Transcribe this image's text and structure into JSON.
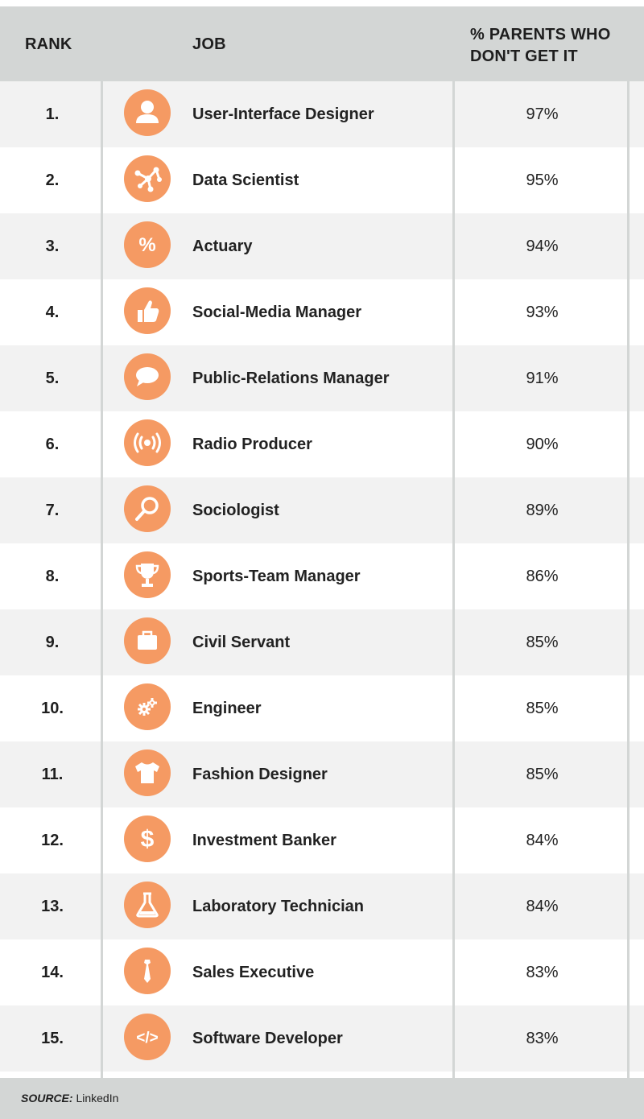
{
  "header": {
    "rank": "RANK",
    "job": "JOB",
    "pct_line1": "% PARENTS WHO",
    "pct_line2": "DON'T GET IT"
  },
  "colors": {
    "accent": "#f59a63",
    "header_bg": "#d3d6d5",
    "row_alt": "#f2f2f2"
  },
  "chart_data": {
    "type": "table",
    "columns": [
      "RANK",
      "JOB",
      "% PARENTS WHO DON'T GET IT"
    ],
    "rows": [
      {
        "rank": "1.",
        "job": "User-Interface Designer",
        "pct": "97%",
        "value": 97,
        "icon": "person-icon"
      },
      {
        "rank": "2.",
        "job": "Data Scientist",
        "pct": "95%",
        "value": 95,
        "icon": "network-icon"
      },
      {
        "rank": "3.",
        "job": "Actuary",
        "pct": "94%",
        "value": 94,
        "icon": "percent-icon"
      },
      {
        "rank": "4.",
        "job": "Social-Media Manager",
        "pct": "93%",
        "value": 93,
        "icon": "thumbs-up-icon"
      },
      {
        "rank": "5.",
        "job": "Public-Relations Manager",
        "pct": "91%",
        "value": 91,
        "icon": "speech-bubble-icon"
      },
      {
        "rank": "6.",
        "job": "Radio Producer",
        "pct": "90%",
        "value": 90,
        "icon": "broadcast-icon"
      },
      {
        "rank": "7.",
        "job": "Sociologist",
        "pct": "89%",
        "value": 89,
        "icon": "magnifier-icon"
      },
      {
        "rank": "8.",
        "job": "Sports-Team Manager",
        "pct": "86%",
        "value": 86,
        "icon": "trophy-icon"
      },
      {
        "rank": "9.",
        "job": "Civil Servant",
        "pct": "85%",
        "value": 85,
        "icon": "briefcase-icon"
      },
      {
        "rank": "10.",
        "job": "Engineer",
        "pct": "85%",
        "value": 85,
        "icon": "gears-icon"
      },
      {
        "rank": "11.",
        "job": "Fashion Designer",
        "pct": "85%",
        "value": 85,
        "icon": "tshirt-icon"
      },
      {
        "rank": "12.",
        "job": "Investment Banker",
        "pct": "84%",
        "value": 84,
        "icon": "dollar-icon"
      },
      {
        "rank": "13.",
        "job": "Laboratory Technician",
        "pct": "84%",
        "value": 84,
        "icon": "flask-icon"
      },
      {
        "rank": "14.",
        "job": "Sales Executive",
        "pct": "83%",
        "value": 83,
        "icon": "tie-icon"
      },
      {
        "rank": "15.",
        "job": "Software Developer",
        "pct": "83%",
        "value": 83,
        "icon": "code-icon"
      }
    ]
  },
  "footer": {
    "source_label": "SOURCE:",
    "source_value": " LinkedIn"
  }
}
